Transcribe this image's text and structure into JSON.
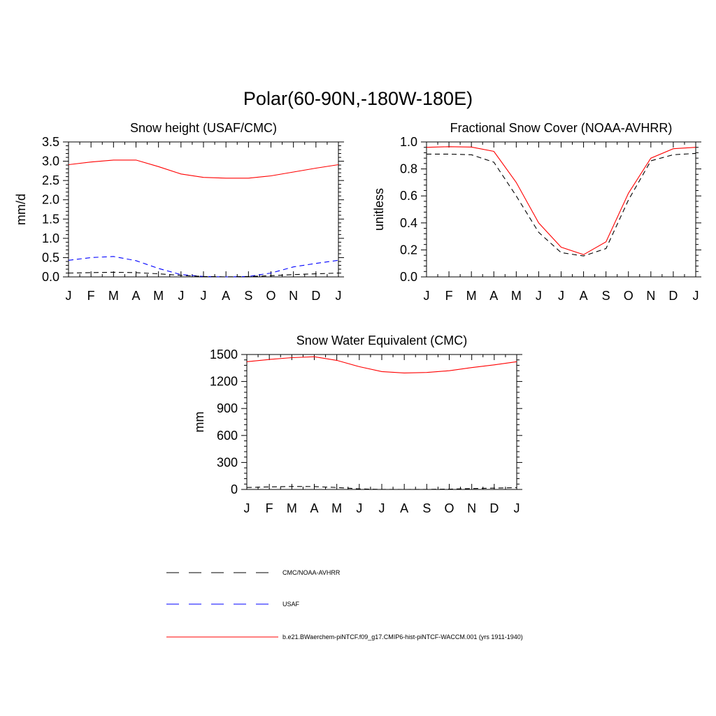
{
  "figure": {
    "title": "Polar(60-90N,-180W-180E)"
  },
  "months": [
    "J",
    "F",
    "M",
    "A",
    "M",
    "J",
    "J",
    "A",
    "S",
    "O",
    "N",
    "D",
    "J"
  ],
  "legend": [
    {
      "label": "CMC/NOAA-AVHRR",
      "color": "#000000",
      "dashed": true
    },
    {
      "label": "USAF",
      "color": "#0000ff",
      "dashed": true
    },
    {
      "label": "b.e21.BWaerchem-piNTCF.f09_g17.CMIP6-hist-piNTCF-WACCM.001 (yrs 1911-1940)",
      "color": "#ff0000",
      "dashed": false
    }
  ],
  "chart_data": [
    {
      "type": "line",
      "title": "Snow height (USAF/CMC)",
      "xlabel": "",
      "ylabel": "mm/d",
      "ylim": [
        0,
        3.5
      ],
      "yticks": [
        "0.0",
        "0.5",
        "1.0",
        "1.5",
        "2.0",
        "2.5",
        "3.0",
        "3.5"
      ],
      "categories": [
        "J",
        "F",
        "M",
        "A",
        "M",
        "J",
        "J",
        "A",
        "S",
        "O",
        "N",
        "D",
        "J"
      ],
      "series": [
        {
          "name": "b.e21.BWaerchem-piNTCF.f09_g17.CMIP6-hist-piNTCF-WACCM.001 (yrs 1911-1940)",
          "color": "#ff0000",
          "dashed": false,
          "values": [
            2.91,
            2.98,
            3.03,
            3.03,
            2.86,
            2.67,
            2.58,
            2.56,
            2.56,
            2.62,
            2.72,
            2.82,
            2.91
          ]
        },
        {
          "name": "USAF",
          "color": "#0000ff",
          "dashed": true,
          "values": [
            0.43,
            0.5,
            0.53,
            0.42,
            0.22,
            0.06,
            0.01,
            0.0,
            0.01,
            0.1,
            0.26,
            0.35,
            0.43
          ]
        },
        {
          "name": "CMC/NOAA-AVHRR",
          "color": "#000000",
          "dashed": true,
          "values": [
            0.1,
            0.11,
            0.12,
            0.11,
            0.08,
            0.04,
            0.01,
            0.0,
            0.01,
            0.03,
            0.06,
            0.08,
            0.1
          ]
        }
      ]
    },
    {
      "type": "line",
      "title": "Fractional Snow Cover (NOAA-AVHRR)",
      "xlabel": "",
      "ylabel": "unitless",
      "ylim": [
        0,
        1.0
      ],
      "yticks": [
        "0.0",
        "0.2",
        "0.4",
        "0.6",
        "0.8",
        "1.0"
      ],
      "categories": [
        "J",
        "F",
        "M",
        "A",
        "M",
        "J",
        "J",
        "A",
        "S",
        "O",
        "N",
        "D",
        "J"
      ],
      "series": [
        {
          "name": "b.e21.BWaerchem-piNTCF.f09_g17.CMIP6-hist-piNTCF-WACCM.001 (yrs 1911-1940)",
          "color": "#ff0000",
          "dashed": false,
          "values": [
            0.96,
            0.965,
            0.962,
            0.93,
            0.7,
            0.4,
            0.22,
            0.165,
            0.26,
            0.62,
            0.88,
            0.95,
            0.96
          ]
        },
        {
          "name": "CMC/NOAA-AVHRR",
          "color": "#000000",
          "dashed": true,
          "values": [
            0.91,
            0.91,
            0.905,
            0.85,
            0.6,
            0.33,
            0.18,
            0.155,
            0.21,
            0.57,
            0.86,
            0.905,
            0.915
          ]
        }
      ]
    },
    {
      "type": "line",
      "title": "Snow Water Equivalent (CMC)",
      "xlabel": "",
      "ylabel": "mm",
      "ylim": [
        0,
        1500
      ],
      "yticks": [
        "0",
        "300",
        "600",
        "900",
        "1200",
        "1500"
      ],
      "categories": [
        "J",
        "F",
        "M",
        "A",
        "M",
        "J",
        "J",
        "A",
        "S",
        "O",
        "N",
        "D",
        "J"
      ],
      "series": [
        {
          "name": "b.e21.BWaerchem-piNTCF.f09_g17.CMIP6-hist-piNTCF-WACCM.001 (yrs 1911-1940)",
          "color": "#ff0000",
          "dashed": false,
          "values": [
            1420,
            1445,
            1465,
            1475,
            1435,
            1365,
            1310,
            1295,
            1300,
            1320,
            1355,
            1385,
            1420
          ]
        },
        {
          "name": "CMC/NOAA-AVHRR",
          "color": "#000000",
          "dashed": true,
          "values": [
            22,
            28,
            33,
            32,
            22,
            6,
            1,
            0,
            1,
            4,
            10,
            15,
            20
          ]
        }
      ]
    }
  ]
}
